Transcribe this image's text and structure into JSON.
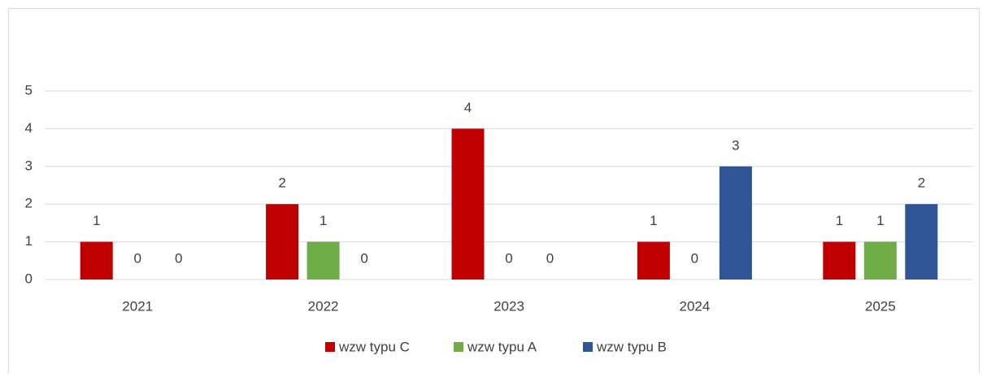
{
  "chart_data": {
    "type": "bar",
    "categories": [
      "2021",
      "2022",
      "2023",
      "2024",
      "2025"
    ],
    "series": [
      {
        "name": "wzw typu C",
        "color": "#c00000",
        "values": [
          1,
          2,
          4,
          1,
          1
        ]
      },
      {
        "name": "wzw typu A",
        "color": "#70ad47",
        "values": [
          0,
          1,
          0,
          0,
          1
        ]
      },
      {
        "name": "wzw typu B",
        "color": "#2f5597",
        "values": [
          0,
          0,
          0,
          3,
          2
        ]
      }
    ],
    "ylim": [
      0,
      5
    ],
    "yticks": [
      0,
      1,
      2,
      3,
      4,
      5
    ],
    "grid": true,
    "legend": "bottom"
  }
}
